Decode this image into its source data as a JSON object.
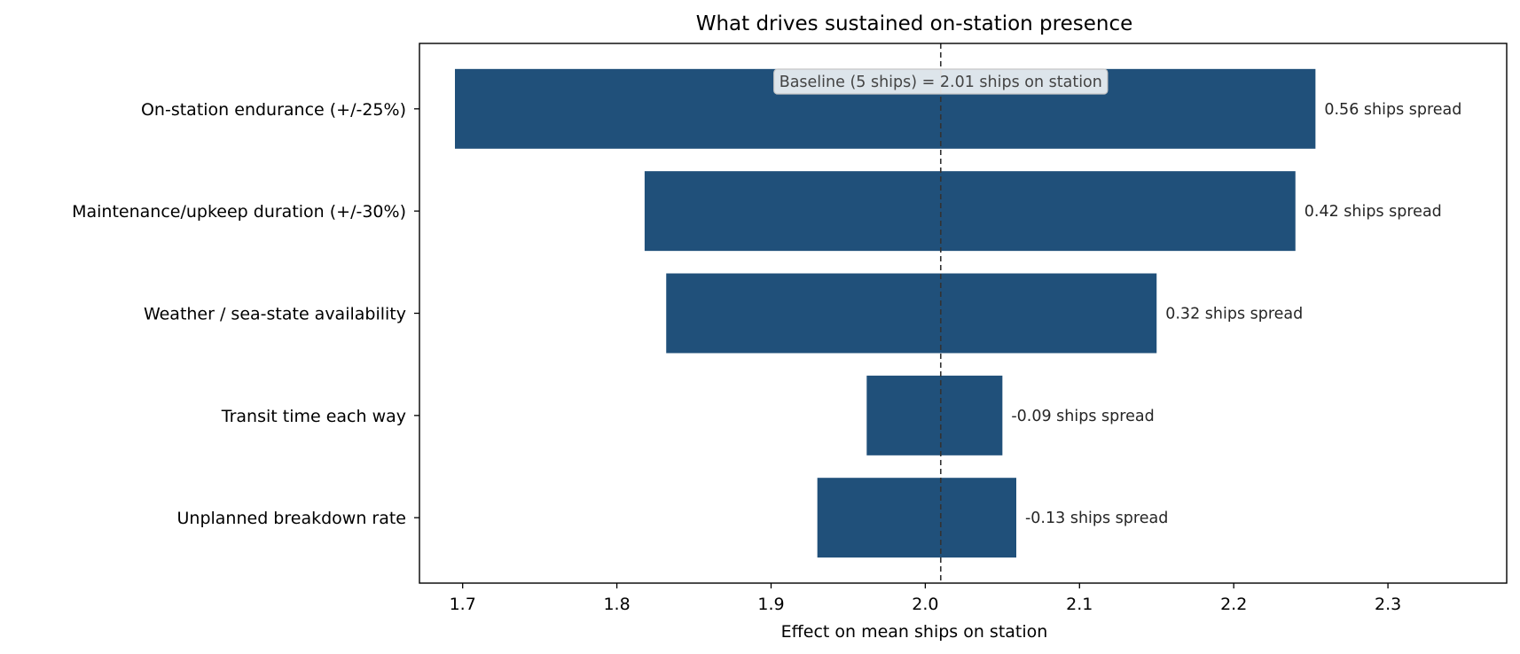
{
  "chart_data": {
    "type": "bar",
    "orientation": "horizontal",
    "title": "What drives sustained on-station presence",
    "xlabel": "Effect on mean ships on station",
    "ylabel": "",
    "xlim": [
      1.672,
      2.377
    ],
    "xticks": [
      1.7,
      1.8,
      1.9,
      2.0,
      2.1,
      2.2,
      2.3
    ],
    "xtick_labels": [
      "1.7",
      "1.8",
      "1.9",
      "2.0",
      "2.1",
      "2.2",
      "2.3"
    ],
    "grid": false,
    "baseline": {
      "value": 2.01,
      "label": "Baseline (5 ships) = 2.01 ships on station"
    },
    "bar_color": "#20507a",
    "categories": [
      "On-station endurance (+/-25%)",
      "Maintenance/upkeep duration (+/-30%)",
      "Weather / sea-state availability",
      "Transit time each way",
      "Unplanned breakdown rate"
    ],
    "low": [
      1.695,
      1.818,
      1.832,
      1.962,
      1.93
    ],
    "high": [
      2.253,
      2.24,
      2.15,
      2.05,
      2.059
    ],
    "labels": [
      "0.56 ships spread",
      "0.42 ships spread",
      "0.32 ships spread",
      "-0.09 ships spread",
      "-0.13 ships spread"
    ]
  }
}
